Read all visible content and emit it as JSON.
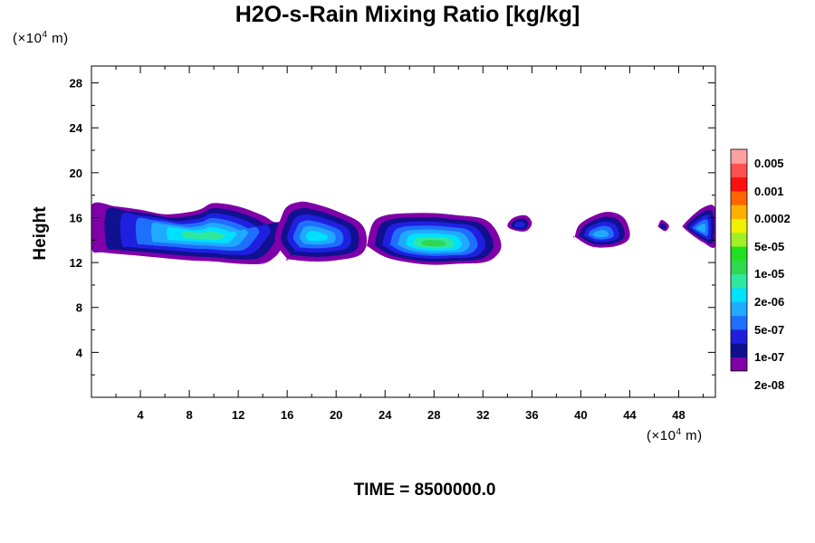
{
  "chart_data": {
    "type": "contour",
    "title": "H2O-s-Rain Mixing Ratio [kg/kg]",
    "xlabel": "",
    "ylabel": "Height",
    "x_unit_prefix": "(×10",
    "x_unit_exp": "4",
    "x_unit_suffix": " m)",
    "y_unit_prefix": "(×10",
    "y_unit_exp": "4",
    "y_unit_suffix": " m)",
    "xlim": [
      0,
      51
    ],
    "ylim": [
      0,
      29.5
    ],
    "x_ticks": [
      "4",
      "8",
      "12",
      "16",
      "20",
      "24",
      "28",
      "32",
      "36",
      "40",
      "44",
      "48"
    ],
    "x_tick_values": [
      4,
      8,
      12,
      16,
      20,
      24,
      28,
      32,
      36,
      40,
      44,
      48
    ],
    "y_ticks": [
      "4",
      "8",
      "12",
      "16",
      "20",
      "24",
      "28"
    ],
    "y_tick_values": [
      4,
      8,
      12,
      16,
      20,
      24,
      28
    ],
    "levels": [
      "2e-08",
      "1e-07",
      "5e-07",
      "2e-06",
      "1e-05",
      "5e-05",
      "0.0002",
      "0.001",
      "0.005"
    ],
    "colorbar_colors": [
      "#7f00a8",
      "#101090",
      "#1f1fe0",
      "#1f6fff",
      "#20aaff",
      "#00e0ff",
      "#2fe8a0",
      "#30d850",
      "#20e020",
      "#a0f028",
      "#f0f000",
      "#ffb000",
      "#ff6600",
      "#ff1010",
      "#ff5050",
      "#ffa0a0"
    ],
    "blobs": [
      {
        "x": [
          0,
          1,
          4,
          8,
          10,
          12,
          14,
          15,
          15.5,
          16,
          16.5,
          16,
          15,
          14,
          12,
          10,
          9,
          8,
          6,
          4,
          2,
          0
        ],
        "y": [
          13.3,
          12.9,
          12.6,
          12.2,
          12.1,
          11.9,
          11.9,
          12.5,
          13.2,
          14.0,
          15.0,
          15.8,
          15.6,
          16.2,
          17.0,
          17.3,
          16.8,
          16.5,
          16.3,
          16.7,
          17.0,
          17.1
        ],
        "level": 6
      },
      {
        "x": [
          16,
          18,
          20,
          22,
          22.5,
          22,
          20,
          18,
          17,
          16,
          15.5,
          15,
          16
        ],
        "y": [
          12.3,
          12.1,
          12.2,
          12.7,
          14,
          15.5,
          16.6,
          17.3,
          17.4,
          17.0,
          16,
          14,
          12.3
        ],
        "level": 5
      },
      {
        "x": [
          22.5,
          24,
          26,
          28,
          30,
          32,
          33,
          33.5,
          33,
          32,
          30,
          28,
          26,
          24,
          23,
          22.5
        ],
        "y": [
          13.5,
          12.5,
          12.0,
          11.8,
          11.9,
          12.0,
          12.5,
          13.5,
          15,
          15.9,
          16.2,
          16.4,
          16.4,
          16.2,
          15.5,
          13.5
        ],
        "level": 7
      },
      {
        "x": [
          34.5,
          35.5,
          36,
          35.5,
          34.5,
          34
        ],
        "y": [
          14.9,
          14.8,
          15.5,
          16.2,
          16.0,
          15.3
        ],
        "level": 2
      },
      {
        "x": [
          39.5,
          41,
          43,
          44,
          43.5,
          42,
          40,
          39.5
        ],
        "y": [
          14.3,
          13.4,
          13.5,
          14.3,
          16,
          16.5,
          15.5,
          14.3
        ],
        "level": 4
      },
      {
        "x": [
          48.5,
          50,
          51,
          51,
          50,
          48.5
        ],
        "y": [
          15.0,
          13.8,
          13.5,
          16.8,
          16.9,
          15.5
        ],
        "level": 4
      },
      {
        "x": [
          46.3,
          46.9,
          47.2,
          46.6,
          46.3
        ],
        "y": [
          15.2,
          14.8,
          15.3,
          15.8,
          15.2
        ],
        "level": 1
      }
    ]
  },
  "footer": {
    "time_label": "TIME = 8500000.0"
  }
}
